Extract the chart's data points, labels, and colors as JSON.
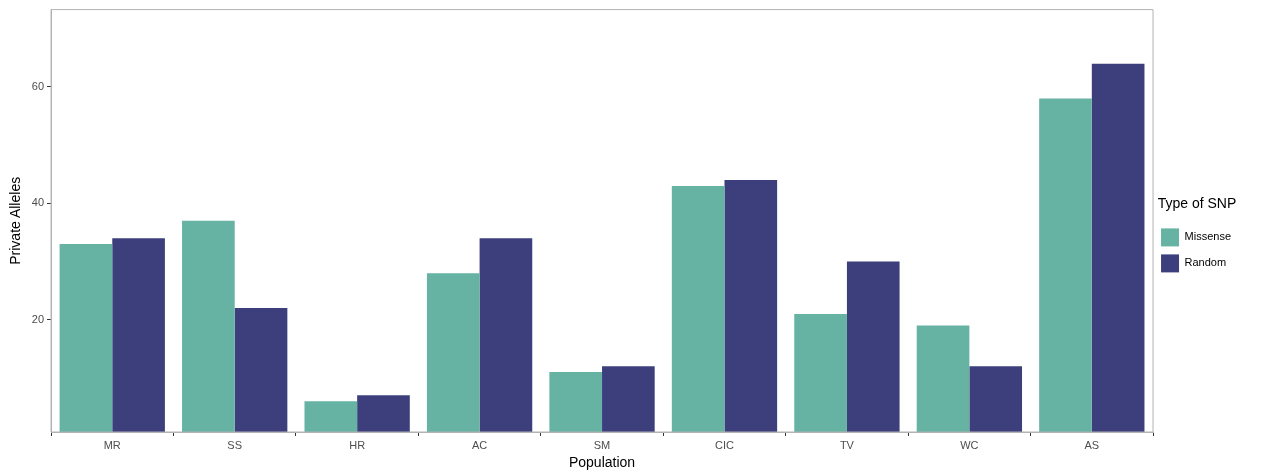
{
  "chart_data": {
    "type": "bar",
    "xlabel": "Population",
    "ylabel": "Private Alleles",
    "legend_title": "Type of SNP",
    "categories": [
      "MR",
      "SS",
      "HR",
      "AC",
      "SM",
      "CIC",
      "TV",
      "WC",
      "AS"
    ],
    "series": [
      {
        "name": "Missense",
        "color": "#66b2a3",
        "values": [
          33,
          37,
          6,
          28,
          11,
          43,
          21,
          19,
          58
        ]
      },
      {
        "name": "Random",
        "color": "#3c3f7c",
        "values": [
          34,
          22,
          7,
          34,
          12,
          44,
          30,
          12,
          64
        ]
      }
    ],
    "ylim": [
      0.7,
      73.3
    ],
    "yticks": [
      20,
      40,
      60
    ],
    "legend": "right"
  }
}
